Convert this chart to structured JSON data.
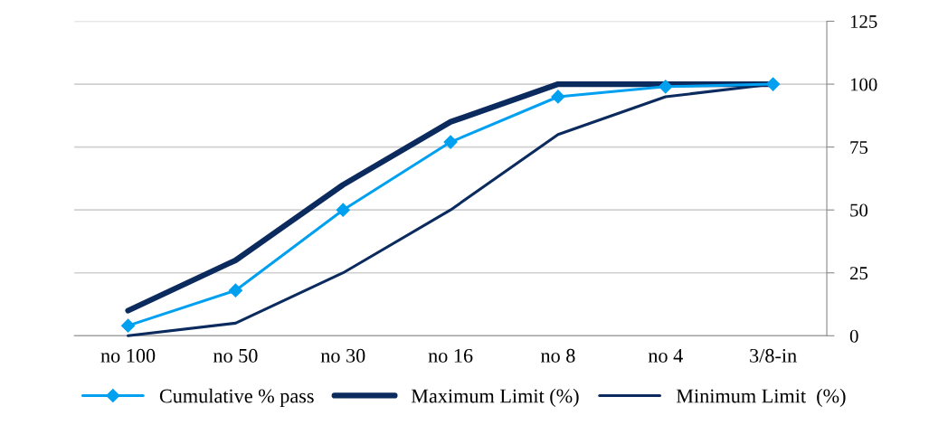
{
  "chart_data": {
    "type": "line",
    "categories": [
      "no 100",
      "no 50",
      "no 30",
      "no 16",
      "no 8",
      "no 4",
      "3/8-in"
    ],
    "series": [
      {
        "name": "Cumulative % pass",
        "color": "#00a0f0",
        "values": [
          4,
          18,
          50,
          77,
          95,
          99,
          100
        ],
        "marker": "diamond"
      },
      {
        "name": "Maximum Limit (%)",
        "color": "#0b2a5e",
        "values": [
          10,
          30,
          60,
          85,
          100,
          100,
          100
        ],
        "marker": "none"
      },
      {
        "name": "Minimum Limit  (%)",
        "color": "#0b2a5e",
        "values": [
          0,
          5,
          25,
          50,
          80,
          95,
          100
        ],
        "marker": "none"
      }
    ],
    "ylim": [
      0,
      125
    ],
    "yticks": [
      0,
      25,
      50,
      75,
      100,
      125
    ],
    "grid": "y",
    "legend": "bottom"
  }
}
